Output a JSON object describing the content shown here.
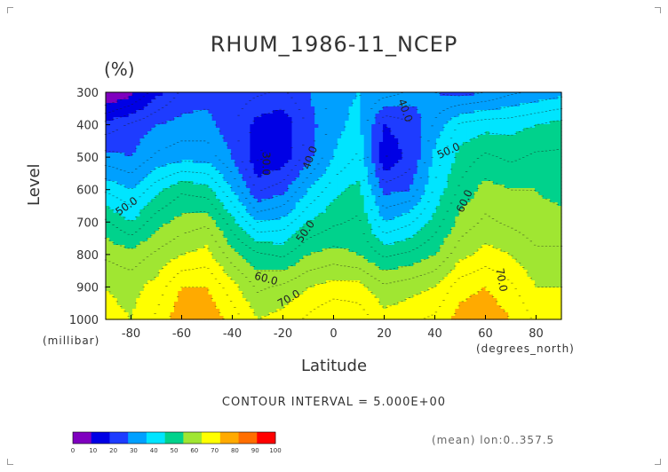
{
  "chart_data": {
    "type": "heatmap",
    "title": "RHUM_1986-11_NCEP",
    "units": "(%)",
    "xlabel": "Latitude",
    "x_units": "(degrees_north)",
    "ylabel": "Level",
    "y_units": "(millibar)",
    "xlim": [
      -90,
      90
    ],
    "ylim": [
      1000,
      300
    ],
    "x_ticks": [
      "-80",
      "-60",
      "-40",
      "-20",
      "0",
      "20",
      "40",
      "60",
      "80"
    ],
    "x_tick_values": [
      -80,
      -60,
      -40,
      -20,
      0,
      20,
      40,
      60,
      80
    ],
    "y_ticks": [
      "300",
      "400",
      "500",
      "600",
      "700",
      "800",
      "900",
      "1000"
    ],
    "y_tick_values": [
      300,
      400,
      500,
      600,
      700,
      800,
      900,
      1000
    ],
    "lat": [
      -90,
      -80,
      -70,
      -60,
      -50,
      -40,
      -30,
      -20,
      -10,
      0,
      10,
      20,
      30,
      40,
      50,
      60,
      70,
      80,
      90
    ],
    "levels": [
      300,
      400,
      500,
      600,
      700,
      800,
      900,
      1000
    ],
    "rhum": [
      [
        2,
        8,
        18,
        26,
        28,
        28,
        26,
        24,
        30,
        38,
        40,
        38,
        34,
        30,
        28,
        30,
        34,
        36,
        38
      ],
      [
        22,
        26,
        30,
        32,
        32,
        26,
        18,
        16,
        26,
        38,
        42,
        20,
        24,
        36,
        46,
        48,
        48,
        50,
        52
      ],
      [
        32,
        30,
        36,
        38,
        38,
        30,
        14,
        16,
        28,
        40,
        46,
        14,
        22,
        42,
        52,
        56,
        54,
        56,
        56
      ],
      [
        44,
        40,
        48,
        54,
        52,
        40,
        24,
        28,
        40,
        48,
        52,
        28,
        30,
        46,
        56,
        62,
        60,
        60,
        58
      ],
      [
        56,
        50,
        58,
        62,
        64,
        52,
        40,
        42,
        50,
        54,
        56,
        40,
        44,
        52,
        62,
        66,
        64,
        62,
        62
      ],
      [
        64,
        62,
        66,
        70,
        72,
        62,
        56,
        54,
        60,
        62,
        60,
        54,
        56,
        60,
        68,
        72,
        70,
        66,
        66
      ],
      [
        70,
        68,
        72,
        80,
        80,
        72,
        64,
        66,
        70,
        72,
        72,
        66,
        68,
        70,
        78,
        80,
        76,
        70,
        70
      ],
      [
        72,
        70,
        76,
        84,
        84,
        78,
        70,
        72,
        76,
        80,
        78,
        72,
        74,
        76,
        82,
        84,
        80,
        74,
        72
      ]
    ],
    "contour_interval_label": "CONTOUR INTERVAL = 5.000E+00",
    "contour_labels": [
      "30.0",
      "40.0",
      "40.0",
      "50.0",
      "50.0",
      "50.0",
      "60.0",
      "60.0",
      "70.0",
      "70.0"
    ],
    "colorbar": {
      "bounds": [
        "0",
        "10",
        "20",
        "30",
        "40",
        "50",
        "60",
        "70",
        "80",
        "90",
        "100"
      ],
      "colors": [
        "#7f00bf",
        "#0000e5",
        "#1e3cff",
        "#00a0ff",
        "#00e5ff",
        "#00d28c",
        "#a0e632",
        "#ffff00",
        "#ffaa00",
        "#ff6e00",
        "#ff0000"
      ]
    },
    "grid": false,
    "legend": "bottom-left colorbar"
  },
  "annotation": {
    "mean_text": "(mean) lon:0..357.5"
  }
}
